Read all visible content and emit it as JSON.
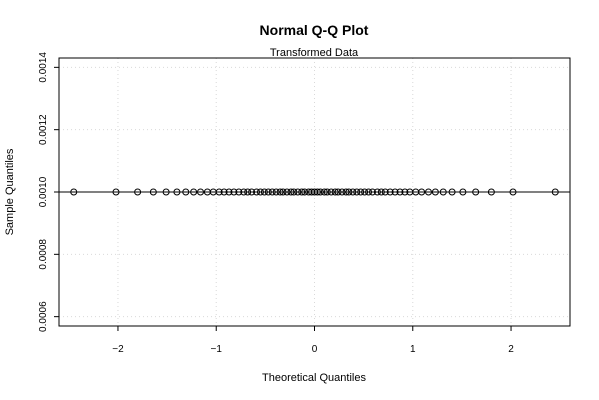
{
  "chart_data": {
    "type": "scatter",
    "title": "Normal Q-Q Plot",
    "subtitle": "Transformed Data",
    "xlabel": "Theoretical Quantiles",
    "ylabel": "Sample Quantiles",
    "xlim": [
      -2.6,
      2.6
    ],
    "ylim": [
      0.00057,
      0.00143
    ],
    "x_ticks": [
      -2,
      -1,
      0,
      1,
      2
    ],
    "x_tick_labels": [
      "−2",
      "−1",
      "0",
      "1",
      "2"
    ],
    "y_ticks": [
      0.0006,
      0.0008,
      0.001,
      0.0012,
      0.0014
    ],
    "y_tick_labels": [
      "0.0006",
      "0.0008",
      "0.0010",
      "0.0012",
      "0.0014"
    ],
    "grid": true,
    "reference_line": {
      "slope": 0,
      "intercept": 0.001
    },
    "points": {
      "x": [
        -2.45,
        -2.02,
        -1.8,
        -1.64,
        -1.51,
        -1.4,
        -1.31,
        -1.23,
        -1.16,
        -1.09,
        -1.03,
        -0.97,
        -0.92,
        -0.87,
        -0.82,
        -0.77,
        -0.72,
        -0.68,
        -0.64,
        -0.59,
        -0.55,
        -0.51,
        -0.47,
        -0.43,
        -0.39,
        -0.35,
        -0.32,
        -0.28,
        -0.24,
        -0.21,
        -0.17,
        -0.13,
        -0.1,
        -0.06,
        -0.03,
        0.0,
        0.03,
        0.06,
        0.1,
        0.13,
        0.17,
        0.21,
        0.24,
        0.28,
        0.32,
        0.35,
        0.39,
        0.43,
        0.47,
        0.51,
        0.55,
        0.59,
        0.64,
        0.68,
        0.72,
        0.77,
        0.82,
        0.87,
        0.92,
        0.97,
        1.03,
        1.09,
        1.16,
        1.23,
        1.31,
        1.4,
        1.51,
        1.64,
        1.8,
        2.02,
        2.45
      ],
      "y": 0.001
    }
  }
}
